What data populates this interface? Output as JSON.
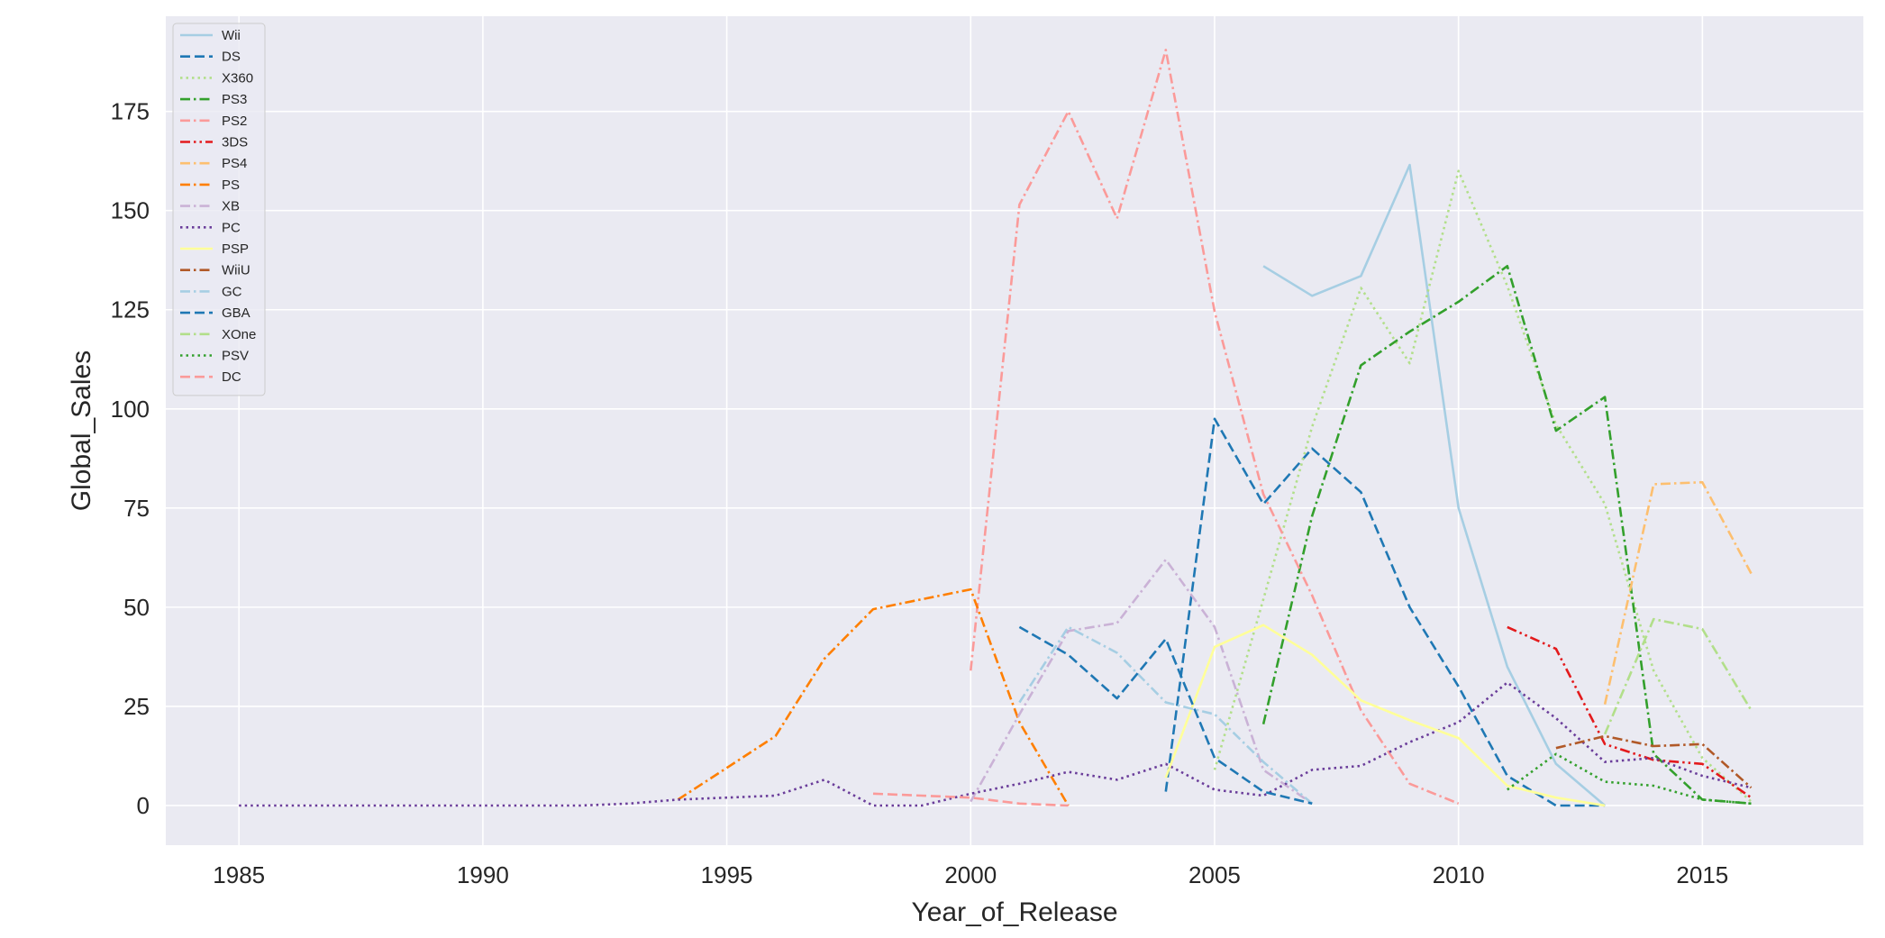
{
  "chart_data": {
    "type": "line",
    "title": "",
    "xlabel": "Year_of_Release",
    "ylabel": "Global_Sales",
    "xlim": [
      1983.5,
      2018.3
    ],
    "ylim": [
      -10,
      199
    ],
    "xticks": [
      1985,
      1990,
      1995,
      2000,
      2005,
      2010,
      2015
    ],
    "yticks": [
      0,
      25,
      50,
      75,
      100,
      125,
      150,
      175
    ],
    "grid": true,
    "legend_position": "top-left",
    "background": "#eaeaf2",
    "series": [
      {
        "name": "Wii",
        "color": "#a6cee3",
        "dash": "solid",
        "x": [
          2006,
          2007,
          2008,
          2009,
          2010,
          2011,
          2012,
          2013
        ],
        "y": [
          136,
          128.5,
          133.5,
          161.5,
          75,
          35,
          10.5,
          0
        ]
      },
      {
        "name": "DS",
        "color": "#1f78b4",
        "dash": "dashed",
        "x": [
          2004,
          2005,
          2006,
          2007,
          2008,
          2009,
          2010,
          2011,
          2012,
          2013
        ],
        "y": [
          3.5,
          97.5,
          76,
          90,
          79,
          50,
          30,
          7.5,
          0,
          0
        ]
      },
      {
        "name": "X360",
        "color": "#b2df8a",
        "dash": "dotted",
        "x": [
          2005,
          2006,
          2007,
          2008,
          2009,
          2010,
          2011,
          2012,
          2013,
          2014,
          2015,
          2016
        ],
        "y": [
          9,
          52,
          95.5,
          130.5,
          111.5,
          160,
          131,
          96,
          76,
          34,
          12,
          1
        ]
      },
      {
        "name": "PS3",
        "color": "#33a02c",
        "dash": "dashdot",
        "x": [
          2006,
          2007,
          2008,
          2009,
          2010,
          2011,
          2012,
          2013,
          2014,
          2015,
          2016
        ],
        "y": [
          20.5,
          73,
          111,
          119.5,
          127,
          136,
          94.5,
          103,
          13,
          1.5,
          0.5
        ]
      },
      {
        "name": "PS2",
        "color": "#fb9a99",
        "dash": "dashdot",
        "x": [
          2000,
          2001,
          2002,
          2003,
          2004,
          2005,
          2006,
          2007,
          2008,
          2009,
          2010
        ],
        "y": [
          34,
          151.5,
          175,
          148,
          190.5,
          124.5,
          78.5,
          53,
          24,
          5.5,
          0.5
        ]
      },
      {
        "name": "3DS",
        "color": "#e31a1c",
        "dash": "dashdotdot",
        "x": [
          2011,
          2012,
          2013,
          2014,
          2015,
          2016
        ],
        "y": [
          45,
          39.5,
          15.5,
          11.5,
          10.5,
          2
        ]
      },
      {
        "name": "PS4",
        "color": "#fdbf6f",
        "dash": "dashdot",
        "x": [
          2013,
          2014,
          2015,
          2016
        ],
        "y": [
          25.5,
          81,
          81.5,
          58.5
        ]
      },
      {
        "name": "PS",
        "color": "#ff7f00",
        "dash": "dashdot",
        "x": [
          1994,
          1995,
          1996,
          1997,
          1998,
          1999,
          2000,
          2001,
          2002
        ],
        "y": [
          1.5,
          9.5,
          17.5,
          37,
          49.5,
          52,
          54.5,
          21,
          0
        ]
      },
      {
        "name": "XB",
        "color": "#cab2d6",
        "dash": "dashdot",
        "x": [
          2000,
          2001,
          2002,
          2003,
          2004,
          2005,
          2006,
          2007
        ],
        "y": [
          1,
          23,
          44,
          46,
          62,
          45,
          9,
          0.5
        ]
      },
      {
        "name": "PC",
        "color": "#6a3d9a",
        "dash": "dotted",
        "x": [
          1985,
          1986,
          1987,
          1988,
          1989,
          1990,
          1991,
          1992,
          1993,
          1994,
          1995,
          1996,
          1997,
          1998,
          1999,
          2000,
          2001,
          2002,
          2003,
          2004,
          2005,
          2006,
          2007,
          2008,
          2009,
          2010,
          2011,
          2012,
          2013,
          2014,
          2015,
          2016
        ],
        "y": [
          0,
          0,
          0,
          0,
          0,
          0,
          0,
          0,
          0.5,
          1.5,
          2,
          2.5,
          6.5,
          0,
          0,
          3,
          5.5,
          8.5,
          6.5,
          10.5,
          4,
          2.5,
          9,
          10,
          16,
          21,
          31,
          22,
          11,
          12,
          7.5,
          4.5
        ]
      },
      {
        "name": "PSP",
        "color": "#ffff99",
        "dash": "solid",
        "x": [
          2004,
          2005,
          2006,
          2007,
          2008,
          2009,
          2010,
          2011,
          2012,
          2013
        ],
        "y": [
          7,
          40,
          45.5,
          38,
          26.5,
          21.5,
          17,
          5,
          2,
          0
        ]
      },
      {
        "name": "WiiU",
        "color": "#b15928",
        "dash": "dashdot",
        "x": [
          2012,
          2013,
          2014,
          2015,
          2016
        ],
        "y": [
          14.5,
          17.5,
          15,
          15.5,
          4.5
        ]
      },
      {
        "name": "GC",
        "color": "#a6cee3",
        "dash": "dashdot",
        "x": [
          2001,
          2002,
          2003,
          2004,
          2005,
          2006,
          2007
        ],
        "y": [
          26,
          45,
          38.5,
          26,
          23,
          11,
          0.5
        ]
      },
      {
        "name": "GBA",
        "color": "#1f78b4",
        "dash": "dashed",
        "x": [
          2001,
          2002,
          2003,
          2004,
          2005,
          2006,
          2007
        ],
        "y": [
          45,
          38,
          27,
          42,
          12,
          3.5,
          0.5
        ]
      },
      {
        "name": "XOne",
        "color": "#b2df8a",
        "dash": "dashdot",
        "x": [
          2013,
          2014,
          2015,
          2016
        ],
        "y": [
          18,
          47,
          44.5,
          24
        ]
      },
      {
        "name": "PSV",
        "color": "#33a02c",
        "dash": "dotted",
        "x": [
          2011,
          2012,
          2013,
          2014,
          2015,
          2016
        ],
        "y": [
          4,
          13,
          6,
          5,
          1.5,
          0.5
        ]
      },
      {
        "name": "DC",
        "color": "#fb9a99",
        "dash": "dashed",
        "x": [
          1998,
          1999,
          2000,
          2001,
          2002
        ],
        "y": [
          3,
          2.5,
          2,
          0.5,
          0
        ]
      }
    ]
  }
}
